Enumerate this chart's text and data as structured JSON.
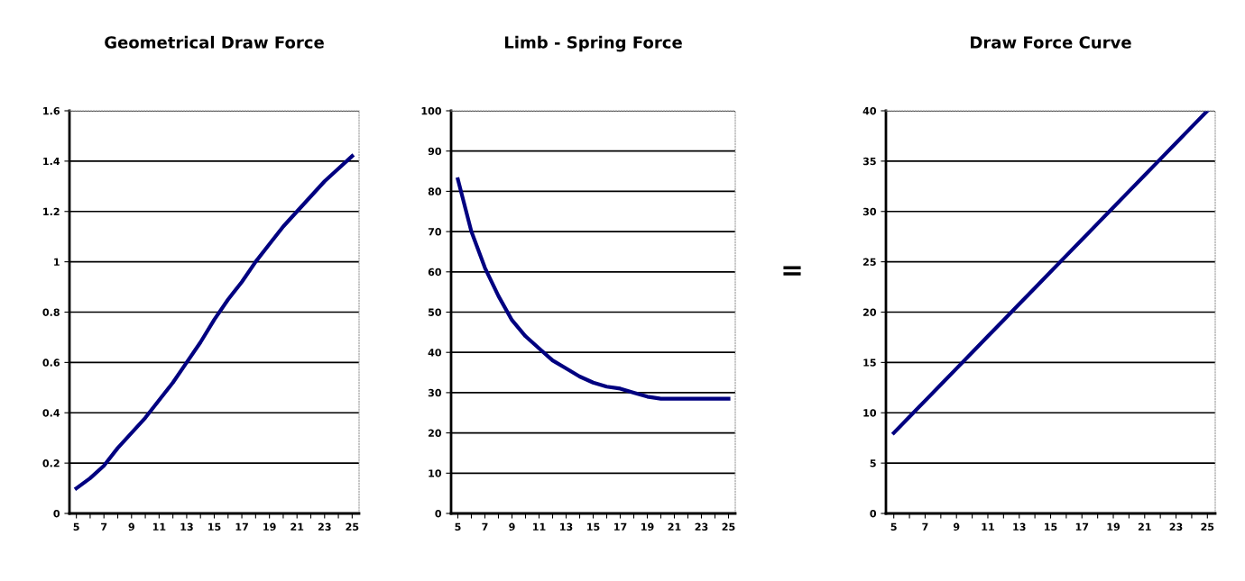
{
  "chart_data": [
    {
      "type": "line",
      "title": "Geometrical Draw Force",
      "categories": [
        "5",
        null,
        "7",
        null,
        "9",
        null,
        "11",
        null,
        "13",
        null,
        "15",
        null,
        "17",
        null,
        "19",
        null,
        "21",
        null,
        "23",
        null,
        "25"
      ],
      "series": [
        {
          "color": "#000080",
          "values": [
            0.1,
            0.14,
            0.19,
            0.26,
            0.32,
            0.38,
            0.45,
            0.52,
            0.6,
            0.68,
            0.77,
            0.85,
            0.92,
            1.0,
            1.07,
            1.14,
            1.2,
            1.26,
            1.32,
            1.37,
            1.42
          ]
        }
      ],
      "ylim": [
        0,
        1.6
      ],
      "yticks": [
        0,
        0.2,
        0.4,
        0.6,
        0.8,
        1,
        1.2,
        1.4,
        1.6
      ],
      "grid": "y",
      "marker": "none",
      "line_style": "solid"
    },
    {
      "type": "line",
      "title": "Limb - Spring Force",
      "categories": [
        "5",
        null,
        "7",
        null,
        "9",
        null,
        "11",
        null,
        "13",
        null,
        "15",
        null,
        "17",
        null,
        "19",
        null,
        "21",
        null,
        "23",
        null,
        "25"
      ],
      "series": [
        {
          "color": "#000080",
          "values": [
            83,
            70,
            61,
            54,
            48,
            44,
            41,
            38,
            36,
            34,
            32.5,
            31.5,
            31,
            30,
            29,
            28.5,
            28.5,
            28.5,
            28.5,
            28.5,
            28.5
          ]
        }
      ],
      "ylim": [
        0,
        100
      ],
      "yticks": [
        0,
        10,
        20,
        30,
        40,
        50,
        60,
        70,
        80,
        90,
        100
      ],
      "grid": "y",
      "marker": "none",
      "line_style": "solid",
      "annotations": [
        "="
      ]
    },
    {
      "type": "line",
      "title": "Draw Force Curve",
      "categories": [
        "5",
        null,
        "7",
        null,
        "9",
        null,
        "11",
        null,
        "13",
        null,
        "15",
        null,
        "17",
        null,
        "19",
        null,
        "21",
        null,
        "23",
        null,
        "25"
      ],
      "series": [
        {
          "color": "#000080",
          "values": [
            8,
            9.6,
            11.2,
            12.8,
            14.4,
            16,
            17.6,
            19.2,
            20.8,
            22.4,
            24,
            25.6,
            27.2,
            28.8,
            30.4,
            32,
            33.6,
            35.2,
            36.8,
            38.4,
            40
          ]
        }
      ],
      "ylim": [
        0,
        40
      ],
      "yticks": [
        0,
        5,
        10,
        15,
        20,
        25,
        30,
        35,
        40
      ],
      "grid": "y",
      "marker": "none",
      "line_style": "solid"
    }
  ]
}
